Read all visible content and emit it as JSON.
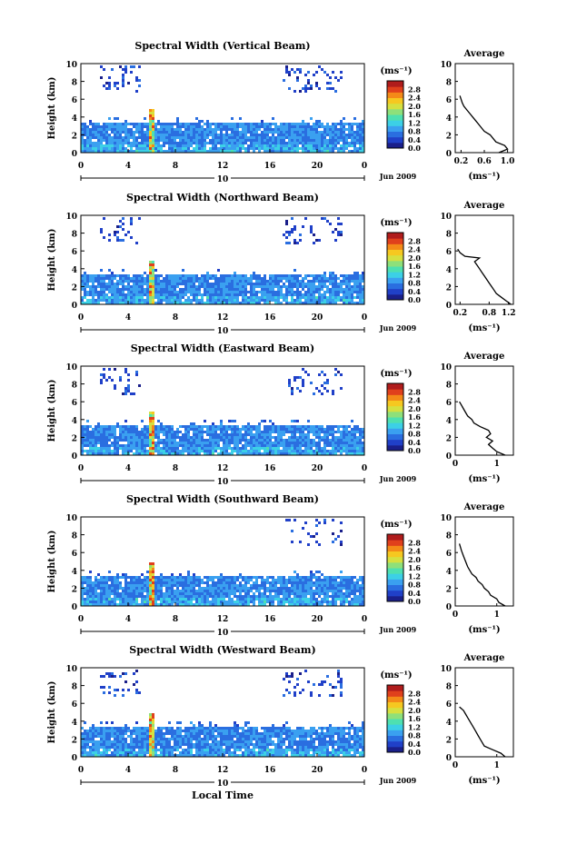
{
  "figure": {
    "xlabel": "Local Time",
    "colorbar_unit": "(ms⁻¹)",
    "colorbar_ticks": [
      "0.0",
      "0.4",
      "0.8",
      "1.2",
      "1.6",
      "2.0",
      "2.4",
      "2.8"
    ],
    "date_label": "Jun 2009",
    "day_label": "10",
    "x_ticks": [
      "0",
      "4",
      "8",
      "12",
      "16",
      "20",
      "0"
    ],
    "y_ticks": [
      "0",
      "2",
      "4",
      "6",
      "8",
      "10"
    ],
    "ylabel": "Height (km)",
    "avg_title": "Average",
    "avg_xlabel": "(ms⁻¹)",
    "colors": {
      "scale": [
        "#1a1f8a",
        "#2040c8",
        "#2a6ee0",
        "#3aa0f0",
        "#3cd0e6",
        "#4ee0b0",
        "#8ee07a",
        "#d6e040",
        "#f6c820",
        "#f48a18",
        "#e0401c",
        "#b01c1c"
      ]
    }
  },
  "chart_data": [
    {
      "type": "heatmap",
      "title": "Spectral Width (Vertical Beam)",
      "xlim": [
        0,
        24
      ],
      "ylim": [
        0,
        10
      ],
      "avg_ticks": [
        "0.2",
        "0.6",
        "1.0"
      ],
      "avg_xlim": [
        0.1,
        1.1
      ],
      "avg_profile": [
        [
          0,
          0.85
        ],
        [
          0.4,
          1.0
        ],
        [
          0.8,
          0.95
        ],
        [
          1.2,
          0.8
        ],
        [
          1.6,
          0.75
        ],
        [
          2.0,
          0.7
        ],
        [
          2.4,
          0.6
        ],
        [
          2.8,
          0.55
        ],
        [
          3.2,
          0.5
        ],
        [
          3.6,
          0.45
        ],
        [
          4.0,
          0.4
        ],
        [
          4.4,
          0.35
        ],
        [
          4.8,
          0.3
        ],
        [
          5.2,
          0.25
        ],
        [
          5.6,
          0.22
        ],
        [
          6.0,
          0.2
        ],
        [
          6.4,
          0.18
        ]
      ]
    },
    {
      "type": "heatmap",
      "title": "Spectral Width (Northward Beam)",
      "xlim": [
        0,
        24
      ],
      "ylim": [
        0,
        10
      ],
      "avg_ticks": [
        "0.2",
        "0.8",
        "1.2"
      ],
      "avg_xlim": [
        0.1,
        1.3
      ],
      "avg_profile": [
        [
          0,
          1.25
        ],
        [
          0.4,
          1.15
        ],
        [
          0.8,
          1.05
        ],
        [
          1.2,
          0.95
        ],
        [
          1.6,
          0.9
        ],
        [
          2.0,
          0.85
        ],
        [
          2.4,
          0.8
        ],
        [
          2.8,
          0.75
        ],
        [
          3.2,
          0.7
        ],
        [
          3.6,
          0.65
        ],
        [
          4.0,
          0.6
        ],
        [
          4.4,
          0.55
        ],
        [
          4.8,
          0.5
        ],
        [
          5.2,
          0.6
        ],
        [
          5.4,
          0.3
        ],
        [
          5.8,
          0.2
        ],
        [
          6.2,
          0.15
        ]
      ]
    },
    {
      "type": "heatmap",
      "title": "Spectral Width (Eastward Beam)",
      "xlim": [
        0,
        24
      ],
      "ylim": [
        0,
        10
      ],
      "avg_ticks": [
        "0",
        "1"
      ],
      "avg_xlim": [
        0,
        1.4
      ],
      "avg_profile": [
        [
          0,
          1.2
        ],
        [
          0.4,
          1.0
        ],
        [
          0.8,
          0.9
        ],
        [
          1.2,
          0.8
        ],
        [
          1.6,
          0.9
        ],
        [
          2.0,
          0.75
        ],
        [
          2.4,
          0.85
        ],
        [
          2.8,
          0.8
        ],
        [
          3.2,
          0.6
        ],
        [
          3.6,
          0.45
        ],
        [
          4.0,
          0.4
        ],
        [
          4.4,
          0.3
        ],
        [
          4.8,
          0.25
        ],
        [
          5.2,
          0.2
        ],
        [
          5.6,
          0.15
        ],
        [
          6.0,
          0.1
        ]
      ]
    },
    {
      "type": "heatmap",
      "title": "Spectral Width (Southward Beam)",
      "xlim": [
        0,
        24
      ],
      "ylim": [
        0,
        10
      ],
      "avg_ticks": [
        "0",
        "1"
      ],
      "avg_xlim": [
        0,
        1.4
      ],
      "avg_profile": [
        [
          0,
          1.2
        ],
        [
          0.4,
          1.05
        ],
        [
          0.8,
          1.0
        ],
        [
          1.2,
          0.85
        ],
        [
          1.6,
          0.8
        ],
        [
          2.0,
          0.7
        ],
        [
          2.4,
          0.65
        ],
        [
          2.8,
          0.55
        ],
        [
          3.2,
          0.5
        ],
        [
          3.6,
          0.4
        ],
        [
          4.0,
          0.35
        ],
        [
          4.4,
          0.3
        ],
        [
          5.0,
          0.25
        ],
        [
          5.6,
          0.2
        ],
        [
          6.2,
          0.15
        ],
        [
          7.0,
          0.1
        ]
      ]
    },
    {
      "type": "heatmap",
      "title": "Spectral Width (Westward Beam)",
      "xlim": [
        0,
        24
      ],
      "ylim": [
        0,
        10
      ],
      "avg_ticks": [
        "0",
        "1"
      ],
      "avg_xlim": [
        0,
        1.4
      ],
      "avg_profile": [
        [
          0,
          1.2
        ],
        [
          0.4,
          1.1
        ],
        [
          0.8,
          0.9
        ],
        [
          1.2,
          0.7
        ],
        [
          1.6,
          0.65
        ],
        [
          2.0,
          0.6
        ],
        [
          2.4,
          0.55
        ],
        [
          2.8,
          0.5
        ],
        [
          3.2,
          0.45
        ],
        [
          3.6,
          0.4
        ],
        [
          4.0,
          0.35
        ],
        [
          4.4,
          0.3
        ],
        [
          4.8,
          0.25
        ],
        [
          5.2,
          0.2
        ],
        [
          5.6,
          0.1
        ]
      ]
    }
  ]
}
